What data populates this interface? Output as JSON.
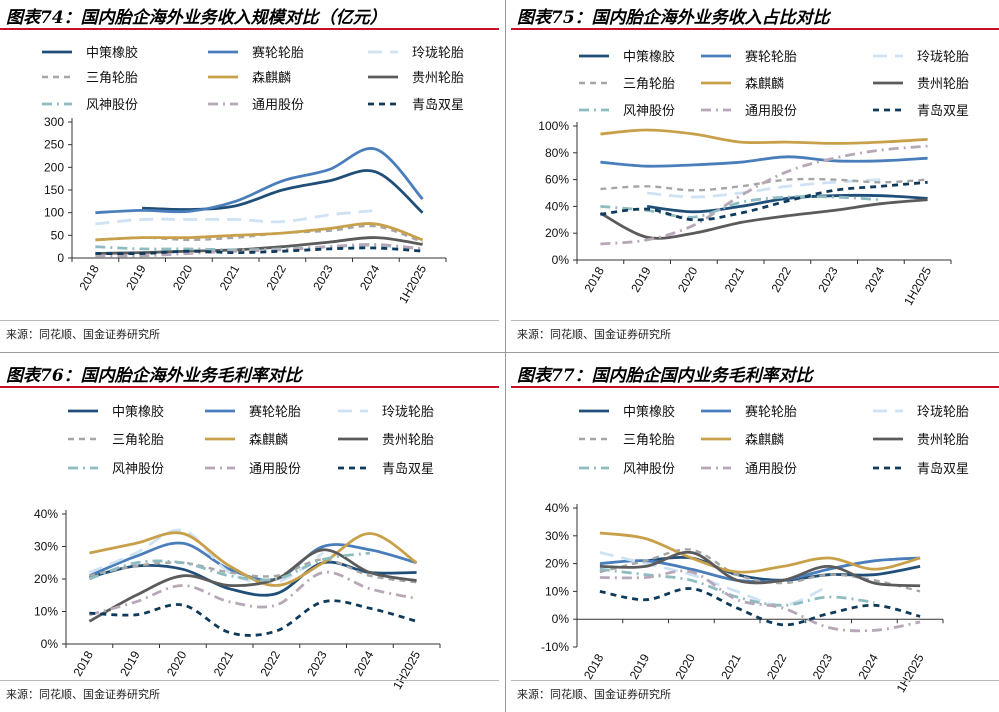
{
  "panels": [
    {
      "title": "图表74：国内胎企海外业务收入规模对比（亿元）",
      "source": "来源：同花顺、国金证券研究所"
    },
    {
      "title": "图表75：国内胎企海外业务收入占比对比",
      "source": "来源：同花顺、国金证券研究所"
    },
    {
      "title": "图表76：国内胎企海外业务毛利率对比",
      "source": "来源：同花顺、国金证券研究所"
    },
    {
      "title": "图表77：国内胎企国内业务毛利率对比",
      "source": "来源：同花顺、国金证券研究所"
    }
  ],
  "styles": {
    "中策橡胶": {
      "color": "#1f4e79",
      "dash": "solid",
      "width": 2.8
    },
    "赛轮轮胎": {
      "color": "#4a7ebb",
      "dash": "solid",
      "width": 2.8
    },
    "玲珑轮胎": {
      "color": "#cfe2f3",
      "dash": "long",
      "width": 2.8
    },
    "三角轮胎": {
      "color": "#a6a6a6",
      "dash": "dash",
      "width": 2.4
    },
    "森麒麟": {
      "color": "#c9a04a",
      "dash": "solid",
      "width": 2.8
    },
    "贵州轮胎": {
      "color": "#5b5b5b",
      "dash": "solid",
      "width": 2.8
    },
    "风神股份": {
      "color": "#8fbcc0",
      "dash": "dashdot",
      "width": 2.8
    },
    "通用股份": {
      "color": "#b7a8b8",
      "dash": "dashdot",
      "width": 2.8
    },
    "青岛双星": {
      "color": "#0e3a5c",
      "dash": "dash",
      "width": 2.8
    }
  },
  "chart_data": [
    {
      "type": "line",
      "categories": [
        "2018",
        "2019",
        "2020",
        "2021",
        "2022",
        "2023",
        "2024",
        "1H2025"
      ],
      "yticks": [
        "0",
        "50",
        "100",
        "150",
        "200",
        "250",
        "300"
      ],
      "ylim": [
        0,
        300
      ],
      "legend": "top",
      "series": [
        {
          "name": "中策橡胶",
          "values": [
            null,
            110,
            107,
            115,
            150,
            170,
            190,
            100
          ]
        },
        {
          "name": "赛轮轮胎",
          "values": [
            100,
            105,
            103,
            125,
            170,
            195,
            240,
            130
          ]
        },
        {
          "name": "玲珑轮胎",
          "values": [
            75,
            85,
            85,
            85,
            80,
            95,
            105,
            null
          ]
        },
        {
          "name": "三角轮胎",
          "values": [
            40,
            45,
            40,
            45,
            55,
            60,
            70,
            35
          ]
        },
        {
          "name": "森麒麟",
          "values": [
            40,
            45,
            45,
            50,
            55,
            65,
            75,
            40
          ]
        },
        {
          "name": "贵州轮胎",
          "values": [
            10,
            12,
            15,
            18,
            25,
            35,
            45,
            30
          ]
        },
        {
          "name": "风神股份",
          "values": [
            25,
            20,
            20,
            18,
            20,
            25,
            28,
            20
          ]
        },
        {
          "name": "通用股份",
          "values": [
            5,
            5,
            10,
            15,
            18,
            25,
            30,
            20
          ]
        },
        {
          "name": "青岛双星",
          "values": [
            10,
            10,
            15,
            12,
            15,
            20,
            22,
            15
          ]
        }
      ]
    },
    {
      "type": "line",
      "categories": [
        "2018",
        "2019",
        "2020",
        "2021",
        "2022",
        "2023",
        "2024",
        "1H2025"
      ],
      "yticks": [
        "0%",
        "20%",
        "40%",
        "60%",
        "80%",
        "100%"
      ],
      "ylim": [
        0,
        100
      ],
      "legend": "top",
      "series": [
        {
          "name": "中策橡胶",
          "values": [
            null,
            40,
            36,
            40,
            46,
            48,
            48,
            46
          ]
        },
        {
          "name": "赛轮轮胎",
          "values": [
            73,
            70,
            71,
            73,
            77,
            74,
            74,
            76
          ]
        },
        {
          "name": "玲珑轮胎",
          "values": [
            null,
            50,
            47,
            50,
            55,
            58,
            60,
            null
          ]
        },
        {
          "name": "三角轮胎",
          "values": [
            53,
            55,
            52,
            55,
            60,
            60,
            58,
            60
          ]
        },
        {
          "name": "森麒麟",
          "values": [
            94,
            97,
            94,
            88,
            88,
            87,
            88,
            90
          ]
        },
        {
          "name": "贵州轮胎",
          "values": [
            35,
            17,
            20,
            28,
            33,
            37,
            42,
            45
          ]
        },
        {
          "name": "风神股份",
          "values": [
            40,
            37,
            32,
            43,
            47,
            47,
            45,
            null
          ]
        },
        {
          "name": "通用股份",
          "values": [
            12,
            15,
            26,
            48,
            66,
            76,
            82,
            85
          ]
        },
        {
          "name": "青岛双星",
          "values": [
            34,
            38,
            30,
            35,
            44,
            52,
            55,
            58
          ]
        }
      ]
    },
    {
      "type": "line",
      "categories": [
        "2018",
        "2019",
        "2020",
        "2021",
        "2022",
        "2023",
        "2024",
        "1H2025"
      ],
      "yticks": [
        "0%",
        "10%",
        "20%",
        "30%",
        "40%"
      ],
      "ylim": [
        0,
        40
      ],
      "legend": "top",
      "series": [
        {
          "name": "中策橡胶",
          "values": [
            20.5,
            24,
            23,
            17,
            15.5,
            25,
            22,
            22
          ]
        },
        {
          "name": "赛轮轮胎",
          "values": [
            21,
            27,
            31,
            23,
            20,
            30,
            29,
            25
          ]
        },
        {
          "name": "玲珑轮胎",
          "values": [
            22,
            28,
            35,
            22,
            19,
            28,
            null,
            null
          ]
        },
        {
          "name": "三角轮胎",
          "values": [
            21,
            24,
            25,
            22,
            21,
            26,
            21,
            19
          ]
        },
        {
          "name": "森麒麟",
          "values": [
            28,
            31,
            34,
            24,
            18,
            25,
            34,
            25
          ]
        },
        {
          "name": "贵州轮胎",
          "values": [
            7,
            15,
            21,
            18,
            20,
            29,
            22,
            19.5
          ]
        },
        {
          "name": "风神股份",
          "values": [
            20,
            25,
            25,
            21,
            20,
            26,
            28,
            null
          ]
        },
        {
          "name": "通用股份",
          "values": [
            9,
            13,
            18,
            13,
            12,
            22,
            17,
            14
          ]
        },
        {
          "name": "青岛双星",
          "values": [
            9.5,
            9,
            12,
            3.5,
            4,
            13,
            11,
            7
          ]
        }
      ]
    },
    {
      "type": "line",
      "categories": [
        "2018",
        "2019",
        "2020",
        "2021",
        "2022",
        "2023",
        "2024",
        "1H2025"
      ],
      "yticks": [
        "-10%",
        "0%",
        "10%",
        "20%",
        "30%",
        "40%"
      ],
      "ylim": [
        -10,
        40
      ],
      "legend": "top",
      "series": [
        {
          "name": "中策橡胶",
          "values": [
            null,
            21,
            22,
            16,
            14,
            16,
            16,
            19
          ]
        },
        {
          "name": "赛轮轮胎",
          "values": [
            20,
            21,
            18,
            14,
            14,
            18,
            21,
            22
          ]
        },
        {
          "name": "玲珑轮胎",
          "values": [
            24,
            20,
            16,
            10,
            5,
            12,
            null,
            null
          ]
        },
        {
          "name": "三角轮胎",
          "values": [
            17,
            21,
            25,
            16,
            13,
            16,
            14,
            10
          ]
        },
        {
          "name": "森麒麟",
          "values": [
            31,
            29,
            22,
            17,
            19,
            22,
            18,
            22
          ]
        },
        {
          "name": "贵州轮胎",
          "values": [
            19,
            19,
            24,
            14,
            14,
            19,
            13,
            12
          ]
        },
        {
          "name": "风神股份",
          "values": [
            18,
            16,
            14,
            8,
            5,
            8,
            6,
            null
          ]
        },
        {
          "name": "通用股份",
          "values": [
            15,
            15,
            17,
            7,
            4,
            -3,
            -4,
            -1
          ]
        },
        {
          "name": "青岛双星",
          "values": [
            10,
            7,
            11,
            4,
            -2,
            2,
            5,
            1
          ]
        }
      ]
    }
  ]
}
